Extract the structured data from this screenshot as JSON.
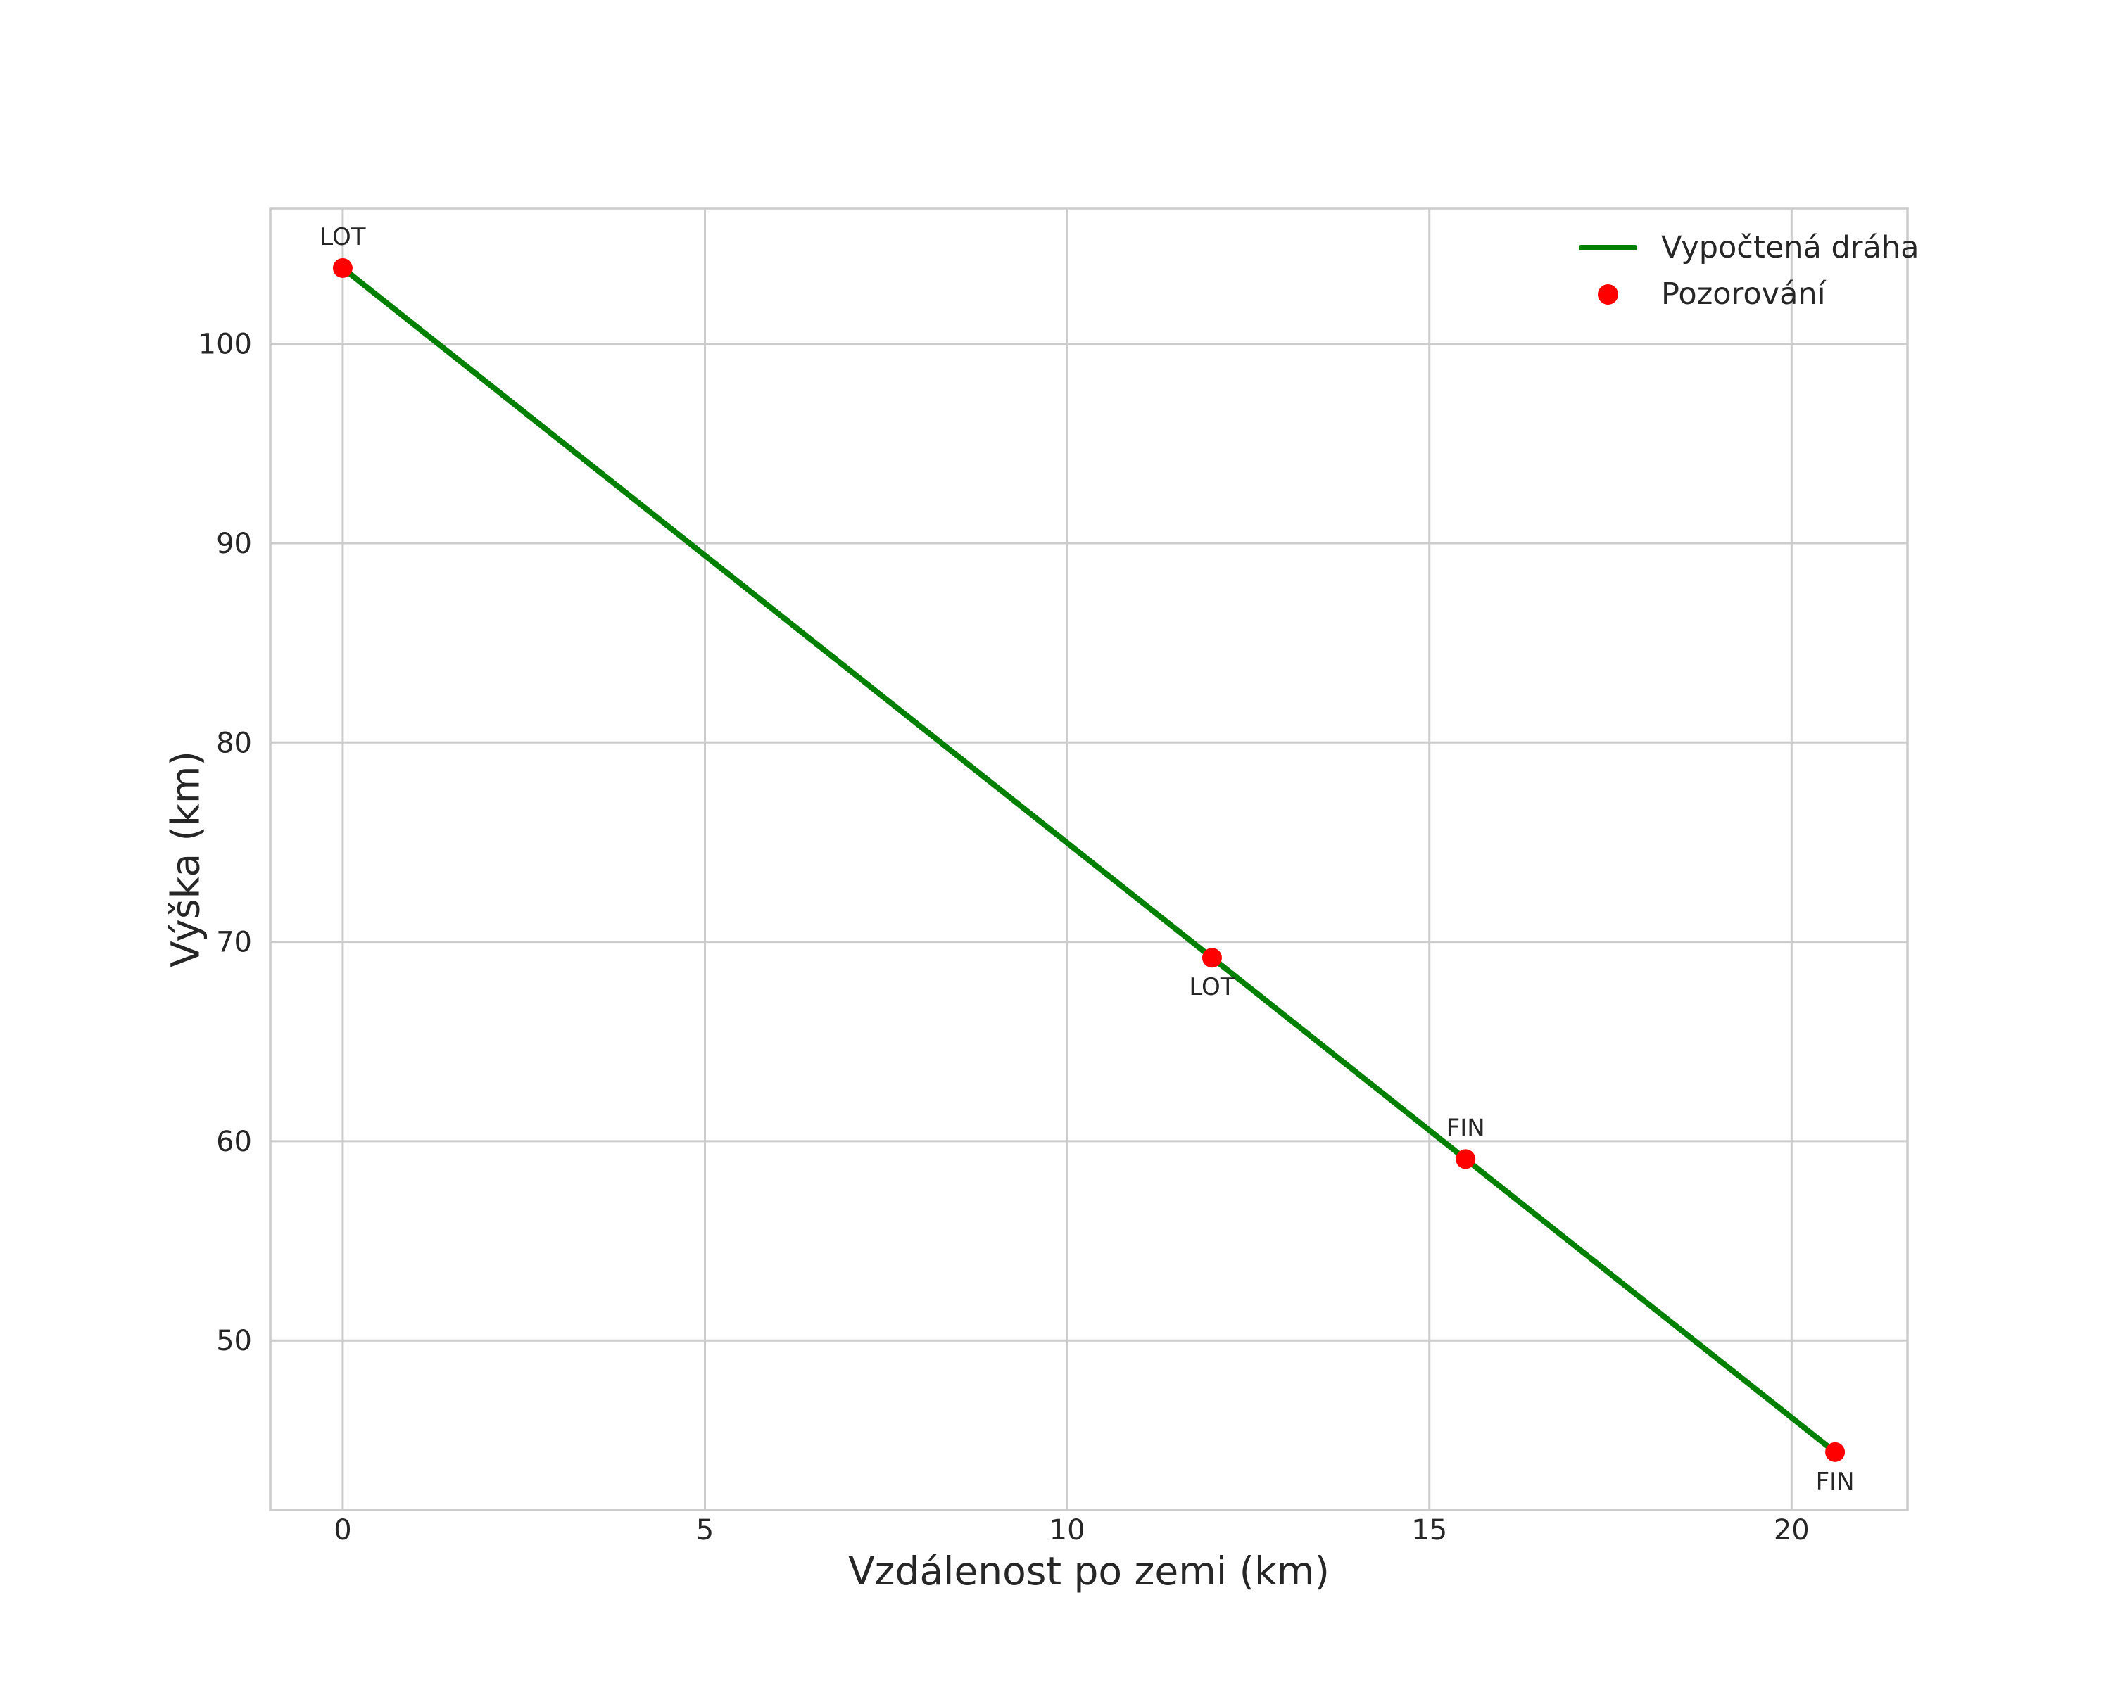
{
  "chart_data": {
    "type": "line",
    "title": "",
    "xlabel": "Vzdálenost po zemi (km)",
    "ylabel": "Výška (km)",
    "xlim": [
      -1.0,
      21.6
    ],
    "ylim": [
      41.5,
      106.8
    ],
    "xticks": [
      0,
      5,
      10,
      15,
      20
    ],
    "yticks": [
      50,
      60,
      70,
      80,
      90,
      100
    ],
    "grid": true,
    "legend": {
      "position": "upper-right",
      "entries": [
        {
          "label": "Vypočtená dráha",
          "type": "line",
          "color": "#008000"
        },
        {
          "label": "Pozorování",
          "type": "marker",
          "color": "#ff0000"
        }
      ]
    },
    "series": [
      {
        "name": "Vypočtená dráha",
        "type": "line",
        "color": "#008000",
        "x": [
          0.0,
          12.0,
          15.5,
          20.6
        ],
        "y": [
          103.8,
          69.2,
          59.1,
          44.4
        ]
      },
      {
        "name": "Pozorování",
        "type": "scatter",
        "color": "#ff0000",
        "points": [
          {
            "x": 0.0,
            "y": 103.8,
            "label": "LOT",
            "label_pos": "above"
          },
          {
            "x": 12.0,
            "y": 69.2,
            "label": "LOT",
            "label_pos": "below"
          },
          {
            "x": 15.5,
            "y": 59.1,
            "label": "FIN",
            "label_pos": "above"
          },
          {
            "x": 20.6,
            "y": 44.4,
            "label": "FIN",
            "label_pos": "below"
          }
        ]
      }
    ],
    "colors": {
      "line": "#008000",
      "marker": "#ff0000",
      "grid": "#cccccc",
      "spine": "#cccccc",
      "text": "#262626"
    }
  }
}
